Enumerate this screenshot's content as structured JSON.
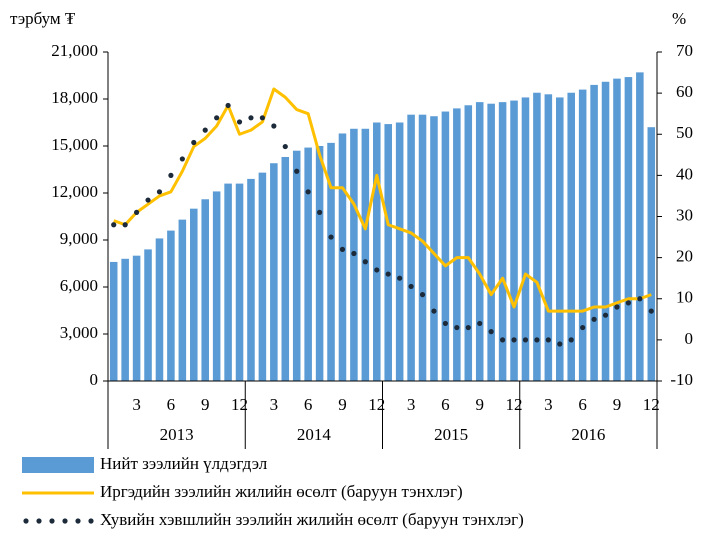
{
  "chart_data": {
    "type": "combo",
    "y_label": "тэрбум ₮",
    "y2_label": "%",
    "categories": [
      null,
      null,
      "3",
      null,
      null,
      "6",
      null,
      null,
      "9",
      null,
      null,
      "12",
      null,
      null,
      "3",
      null,
      null,
      "6",
      null,
      null,
      "9",
      null,
      null,
      "12",
      null,
      null,
      "3",
      null,
      null,
      "6",
      null,
      null,
      "9",
      null,
      null,
      "12",
      null,
      null,
      "3",
      null,
      null,
      "6",
      null,
      null,
      "9",
      null,
      null,
      "12"
    ],
    "years": [
      "2013",
      "2014",
      "2015",
      "2016"
    ],
    "ylim": [
      0,
      21000
    ],
    "yticks": [
      0,
      {
        "value": 3000,
        "label": "3,000"
      },
      {
        "value": 6000,
        "label": "6,000"
      },
      {
        "value": 9000,
        "label": "9,000"
      },
      {
        "value": 12000,
        "label": "12,000"
      },
      {
        "value": 15000,
        "label": "15,000"
      },
      {
        "value": 18000,
        "label": "18,000"
      },
      {
        "value": 21000,
        "label": "21,000"
      }
    ],
    "y2lim": [
      -10,
      70
    ],
    "y2ticks": [
      -10,
      0,
      10,
      20,
      30,
      40,
      50,
      60,
      70
    ],
    "series": [
      {
        "name": "Нийт зээлийн үлдэгдэл",
        "type": "bar",
        "color": "#5b9bd5",
        "values": [
          7600,
          7800,
          8000,
          8400,
          9100,
          9600,
          10300,
          11000,
          11600,
          12100,
          12600,
          12600,
          12900,
          13300,
          13900,
          14300,
          14700,
          14900,
          15000,
          15200,
          15800,
          16100,
          16100,
          16500,
          16400,
          16500,
          17000,
          17000,
          16900,
          17200,
          17400,
          17600,
          17800,
          17700,
          17800,
          17900,
          18100,
          18400,
          18300,
          18100,
          18400,
          18600,
          18900,
          19100,
          19300,
          19400,
          19700,
          16200
        ]
      },
      {
        "name": "Иргэдийн зээлийн жилийн өсөлт (баруун тэнхлэг)",
        "type": "line",
        "axis": "y2",
        "color": "#ffc000",
        "values": [
          29,
          28,
          31,
          33,
          35,
          36,
          41,
          47,
          49,
          52,
          57,
          50,
          51,
          53,
          61,
          59,
          56,
          55,
          45,
          37,
          37,
          33,
          27,
          40,
          28,
          27,
          26,
          24,
          21,
          18,
          20,
          20,
          16,
          11,
          15,
          8,
          16,
          14,
          7,
          7,
          7,
          7,
          8,
          8,
          9,
          10,
          10,
          11
        ]
      },
      {
        "name": "Хувийн хэвшлийн зээлийн жилийн өсөлт (баруун тэнхлэг)",
        "type": "dotted",
        "axis": "y2",
        "color": "#1c2a3a",
        "values": [
          28,
          28,
          31,
          34,
          36,
          40,
          44,
          48,
          51,
          54,
          57,
          53,
          54,
          54,
          52,
          47,
          41,
          36,
          31,
          25,
          22,
          21,
          19,
          17,
          16,
          15,
          13,
          11,
          7,
          4,
          3,
          3,
          4,
          2,
          0,
          0,
          0,
          0,
          0,
          -1,
          0,
          3,
          5,
          6,
          8,
          9,
          10,
          7
        ]
      }
    ]
  }
}
